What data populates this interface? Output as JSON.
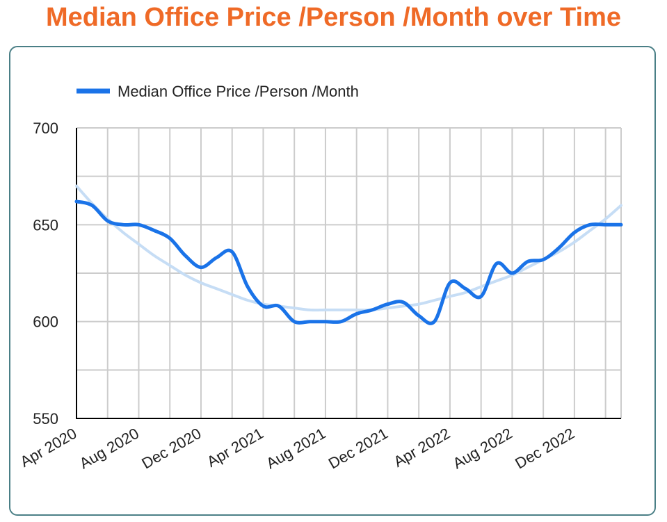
{
  "title": "Median Office Price /Person /Month over Time",
  "colors": {
    "title": "#ef6a27",
    "series": "#1a73e8",
    "trend": "#c6ddf5",
    "grid": "#cccccc",
    "card_border": "#4a7f86"
  },
  "chart_data": {
    "type": "line",
    "title": "Median Office Price /Person /Month over Time",
    "xlabel": "",
    "ylabel": "",
    "ylim": [
      550,
      700
    ],
    "yticks": [
      550,
      600,
      650,
      700
    ],
    "x_tick_labels": [
      "Apr 2020",
      "Aug 2020",
      "Dec 2020",
      "Apr 2021",
      "Aug 2021",
      "Dec 2021",
      "Apr 2022",
      "Aug 2022",
      "Dec 2022"
    ],
    "x_unit": "month",
    "x_start": "2020-04",
    "x_end": "2023-03",
    "grid": true,
    "legend_position": "top-left",
    "series": [
      {
        "name": "Median Office Price /Person /Month",
        "x": [
          "2020-04",
          "2020-05",
          "2020-06",
          "2020-07",
          "2020-08",
          "2020-09",
          "2020-10",
          "2020-11",
          "2020-12",
          "2021-01",
          "2021-02",
          "2021-03",
          "2021-04",
          "2021-05",
          "2021-06",
          "2021-07",
          "2021-08",
          "2021-09",
          "2021-10",
          "2021-11",
          "2021-12",
          "2022-01",
          "2022-02",
          "2022-03",
          "2022-04",
          "2022-05",
          "2022-06",
          "2022-07",
          "2022-08",
          "2022-09",
          "2022-10",
          "2022-11",
          "2022-12",
          "2023-01",
          "2023-02",
          "2023-03"
        ],
        "values": [
          662,
          660,
          652,
          650,
          650,
          647,
          643,
          634,
          628,
          633,
          636,
          618,
          608,
          608,
          600,
          600,
          600,
          600,
          604,
          606,
          609,
          610,
          603,
          600,
          620,
          617,
          613,
          630,
          625,
          631,
          632,
          638,
          646,
          650,
          650,
          650
        ]
      },
      {
        "name": "",
        "style": "trendline",
        "x": [
          "2020-04",
          "2020-05",
          "2020-06",
          "2020-07",
          "2020-08",
          "2020-09",
          "2020-10",
          "2020-11",
          "2020-12",
          "2021-01",
          "2021-02",
          "2021-03",
          "2021-04",
          "2021-05",
          "2021-06",
          "2021-07",
          "2021-08",
          "2021-09",
          "2021-10",
          "2021-11",
          "2021-12",
          "2022-01",
          "2022-02",
          "2022-03",
          "2022-04",
          "2022-05",
          "2022-06",
          "2022-07",
          "2022-08",
          "2022-09",
          "2022-10",
          "2022-11",
          "2022-12",
          "2023-01",
          "2023-02",
          "2023-03"
        ],
        "values": [
          670,
          661,
          653,
          646,
          640,
          634,
          629,
          624,
          620,
          617,
          614,
          611,
          609,
          608,
          607,
          606,
          606,
          606,
          606,
          606,
          607,
          608,
          609,
          611,
          613,
          615,
          618,
          621,
          624,
          628,
          632,
          636,
          641,
          647,
          653,
          660
        ]
      }
    ]
  }
}
